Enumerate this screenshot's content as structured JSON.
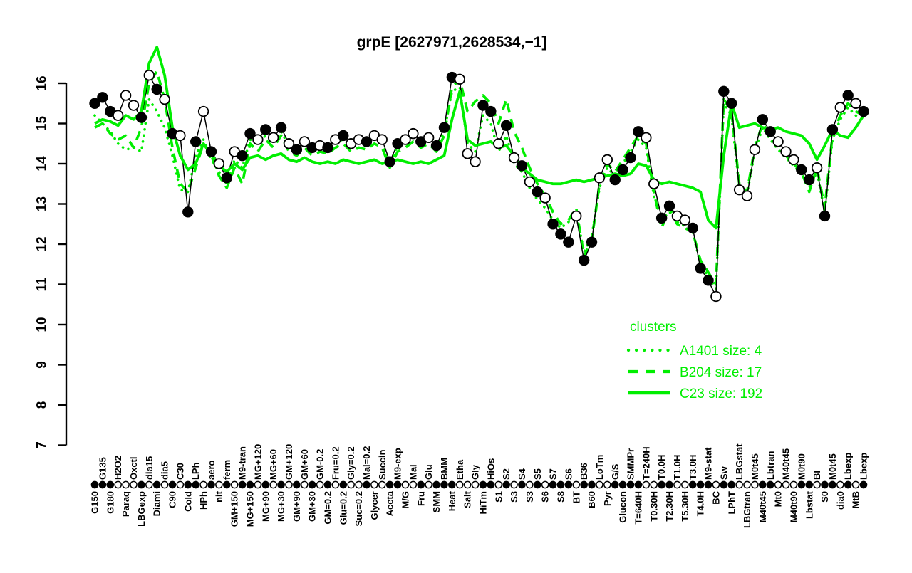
{
  "title": "grpE [2627971,2628534,−1]",
  "legend": {
    "title": "clusters",
    "position": "right-middle",
    "items": [
      {
        "label": "A1401 size: 4",
        "line_style": "dotted",
        "color": "#00ee00"
      },
      {
        "label": "B204 size: 17",
        "line_style": "dashed",
        "color": "#00ee00"
      },
      {
        "label": "C23 size: 192",
        "line_style": "solid",
        "color": "#00ee00"
      }
    ]
  },
  "colors": {
    "cluster_green": "#00ee00",
    "gene_black": "#000000",
    "open_marker_fill": "#ffffff"
  },
  "chart_data": {
    "type": "line",
    "title": "grpE [2627971,2628534,−1]",
    "xlabel": "",
    "ylabel": "",
    "ylim": [
      7,
      16
    ],
    "y_ticks": [
      7,
      8,
      9,
      10,
      11,
      12,
      13,
      14,
      15,
      16
    ],
    "grid": false,
    "legend_position": "right-middle",
    "x_label_layout": "rotated 90deg, alternating two rows starting bottom row, rug of filled/open points along axis",
    "categories": [
      "G150",
      "G135",
      "G180",
      "H2O2",
      "Paraq",
      "Oxctl",
      "LBGexp",
      "dia15",
      "Diami",
      "dia5",
      "C90",
      "C30",
      "Cold",
      "LPh",
      "HPh",
      "aero",
      "nit",
      "ferm",
      "GM+150",
      "M9-tran",
      "MG+150",
      "MG+120",
      "MG+90",
      "MG+60",
      "MG+30",
      "GM+120",
      "GM+90",
      "GM+60",
      "GM+30",
      "GM-0.2",
      "GM=0.2",
      "Fru=0.2",
      "Glu=0.2",
      "Gly=0.2",
      "Suc=0.2",
      "Mal=0.2",
      "Glycer",
      "Succin",
      "Aceta",
      "M9-exp",
      "M/G",
      "Mal",
      "Fru",
      "Glu",
      "SMM",
      "BMM",
      "Heat",
      "Etha",
      "Salt",
      "Gly",
      "HiTm",
      "HiOs",
      "S1",
      "S2",
      "S3",
      "S4",
      "S3",
      "S5",
      "S6",
      "S7",
      "S8",
      "S6",
      "BT",
      "B36",
      "B60",
      "LoTm",
      "Pyr",
      "G/S",
      "Glucon",
      "SMMPr",
      "T=640H",
      "T=240H",
      "T0.30H",
      "T0.0H",
      "T2.30H",
      "T1.0H",
      "T5.30H",
      "T3.0H",
      "T4.0H",
      "M9-stat",
      "BC",
      "Sw",
      "LPhT",
      "LBGstat",
      "LBGtran",
      "M0t45",
      "M40t45",
      "Lbtran",
      "Mt0",
      "M40t45",
      "M40t90",
      "M0t90",
      "Lbstat",
      "BI",
      "S0",
      "M0t45",
      "dia0",
      "Lbexp",
      "MtB",
      "Lbexp"
    ],
    "series": [
      {
        "name": "grpE gene profile",
        "role": "gene",
        "color": "#000000",
        "line": "solid",
        "markers": true,
        "values": [
          15.5,
          15.65,
          15.3,
          15.2,
          15.7,
          15.45,
          15.15,
          16.2,
          15.85,
          15.6,
          14.75,
          14.7,
          12.8,
          14.55,
          15.3,
          14.3,
          14.0,
          13.65,
          14.3,
          14.2,
          14.75,
          14.6,
          14.85,
          14.65,
          14.9,
          14.5,
          14.35,
          14.55,
          14.4,
          14.45,
          14.4,
          14.6,
          14.7,
          14.5,
          14.6,
          14.55,
          14.7,
          14.6,
          14.05,
          14.5,
          14.6,
          14.75,
          14.55,
          14.65,
          14.45,
          14.9,
          16.15,
          16.1,
          14.25,
          14.05,
          15.45,
          15.3,
          14.5,
          14.95,
          14.15,
          13.95,
          13.55,
          13.3,
          13.15,
          12.5,
          12.25,
          12.05,
          12.7,
          11.6,
          12.05,
          13.65,
          14.1,
          13.6,
          13.85,
          14.15,
          14.8,
          14.65,
          13.5,
          12.65,
          12.95,
          12.7,
          12.6,
          12.4,
          11.4,
          11.1,
          10.7,
          15.8,
          15.5,
          13.35,
          13.2,
          14.35,
          15.1,
          14.8,
          14.55,
          14.3,
          14.1,
          13.85,
          13.6,
          13.9,
          12.7,
          14.85,
          15.4,
          15.7,
          15.5,
          15.3
        ],
        "marker_filled": [
          1,
          1,
          1,
          0,
          0,
          0,
          1,
          0,
          1,
          0,
          1,
          0,
          1,
          1,
          0,
          1,
          0,
          1,
          0,
          1,
          1,
          0,
          1,
          0,
          1,
          0,
          1,
          0,
          1,
          0,
          1,
          0,
          1,
          0,
          0,
          1,
          0,
          0,
          1,
          1,
          0,
          0,
          1,
          0,
          1,
          1,
          1,
          0,
          0,
          0,
          1,
          1,
          0,
          1,
          0,
          1,
          0,
          1,
          0,
          1,
          1,
          1,
          0,
          1,
          1,
          0,
          0,
          1,
          1,
          1,
          1,
          0,
          0,
          1,
          1,
          0,
          0,
          1,
          1,
          1,
          0,
          1,
          1,
          0,
          0,
          0,
          1,
          1,
          0,
          0,
          0,
          1,
          1,
          0,
          1,
          1,
          0,
          1,
          0,
          1
        ]
      },
      {
        "name": "A1401",
        "size": 4,
        "color": "#00ee00",
        "line": "dotted",
        "markers": false,
        "values": [
          15.2,
          15.0,
          14.8,
          14.5,
          14.35,
          14.4,
          14.3,
          15.6,
          15.3,
          14.9,
          14.2,
          13.35,
          13.3,
          14.2,
          14.6,
          14.1,
          13.8,
          13.5,
          14.1,
          13.9,
          14.6,
          14.5,
          14.7,
          14.55,
          14.8,
          14.45,
          14.3,
          14.5,
          14.35,
          14.4,
          14.35,
          14.55,
          14.6,
          14.45,
          14.55,
          14.5,
          14.65,
          14.55,
          14.0,
          14.45,
          14.55,
          14.7,
          14.5,
          14.6,
          14.4,
          14.8,
          15.8,
          15.9,
          14.5,
          14.3,
          15.2,
          15.0,
          14.3,
          14.7,
          14.0,
          13.8,
          13.4,
          13.1,
          12.9,
          12.6,
          12.4,
          12.55,
          12.8,
          11.8,
          12.2,
          13.4,
          13.9,
          13.7,
          14.0,
          14.3,
          14.6,
          14.4,
          13.2,
          12.6,
          12.8,
          12.55,
          12.45,
          12.3,
          11.5,
          11.2,
          10.9,
          15.5,
          15.2,
          13.4,
          13.25,
          14.3,
          14.9,
          14.6,
          14.35,
          14.15,
          13.95,
          13.75,
          13.4,
          13.8,
          12.8,
          14.6,
          15.1,
          15.4,
          15.2,
          15.0
        ]
      },
      {
        "name": "B204",
        "size": 17,
        "color": "#00ee00",
        "line": "dashed",
        "markers": false,
        "values": [
          14.9,
          15.0,
          14.75,
          14.6,
          14.7,
          14.4,
          14.9,
          16.0,
          16.3,
          15.6,
          14.4,
          13.5,
          13.3,
          13.9,
          14.5,
          14.2,
          13.7,
          13.4,
          13.9,
          13.5,
          14.5,
          14.3,
          14.6,
          14.4,
          14.7,
          14.3,
          14.2,
          14.4,
          14.2,
          14.3,
          14.25,
          14.4,
          14.5,
          14.3,
          14.4,
          14.35,
          14.5,
          14.4,
          13.9,
          14.3,
          14.4,
          14.55,
          14.4,
          14.5,
          14.3,
          14.7,
          15.9,
          16.1,
          15.3,
          15.55,
          15.7,
          15.5,
          15.0,
          15.6,
          14.8,
          14.4,
          13.9,
          13.5,
          13.2,
          12.8,
          12.5,
          12.6,
          12.9,
          11.7,
          12.1,
          13.5,
          14.0,
          13.8,
          14.1,
          14.4,
          14.7,
          14.5,
          13.3,
          12.4,
          12.9,
          12.5,
          12.4,
          12.3,
          11.6,
          11.3,
          11.0,
          15.6,
          15.3,
          13.5,
          13.3,
          14.4,
          15.0,
          14.7,
          14.4,
          14.2,
          14.0,
          13.8,
          13.3,
          13.9,
          12.9,
          14.7,
          15.2,
          15.5,
          15.3,
          15.2
        ]
      },
      {
        "name": "C23",
        "size": 192,
        "color": "#00ee00",
        "line": "solid",
        "markers": false,
        "values": [
          15.0,
          15.1,
          15.05,
          14.95,
          15.2,
          15.1,
          15.3,
          16.5,
          16.9,
          16.2,
          14.9,
          14.2,
          13.85,
          14.0,
          14.5,
          14.25,
          13.95,
          13.8,
          14.0,
          13.85,
          14.15,
          14.2,
          14.1,
          14.2,
          14.25,
          14.1,
          14.05,
          14.15,
          14.05,
          14.0,
          14.05,
          14.0,
          14.1,
          14.05,
          14.0,
          14.05,
          14.1,
          14.0,
          14.05,
          14.1,
          14.05,
          14.0,
          14.05,
          14.0,
          14.1,
          14.2,
          15.1,
          15.8,
          14.6,
          14.45,
          14.5,
          14.55,
          14.4,
          14.45,
          14.2,
          13.9,
          13.75,
          13.6,
          13.55,
          13.5,
          13.5,
          13.55,
          13.6,
          13.55,
          13.6,
          13.65,
          13.7,
          13.75,
          13.7,
          13.75,
          14.0,
          13.95,
          13.6,
          13.5,
          13.55,
          13.5,
          13.45,
          13.4,
          13.3,
          12.6,
          12.4,
          14.2,
          15.5,
          14.9,
          14.95,
          15.0,
          14.9,
          14.85,
          14.9,
          14.8,
          14.75,
          14.7,
          14.5,
          14.1,
          14.45,
          14.85,
          14.7,
          14.65,
          14.9,
          15.2
        ]
      }
    ]
  }
}
